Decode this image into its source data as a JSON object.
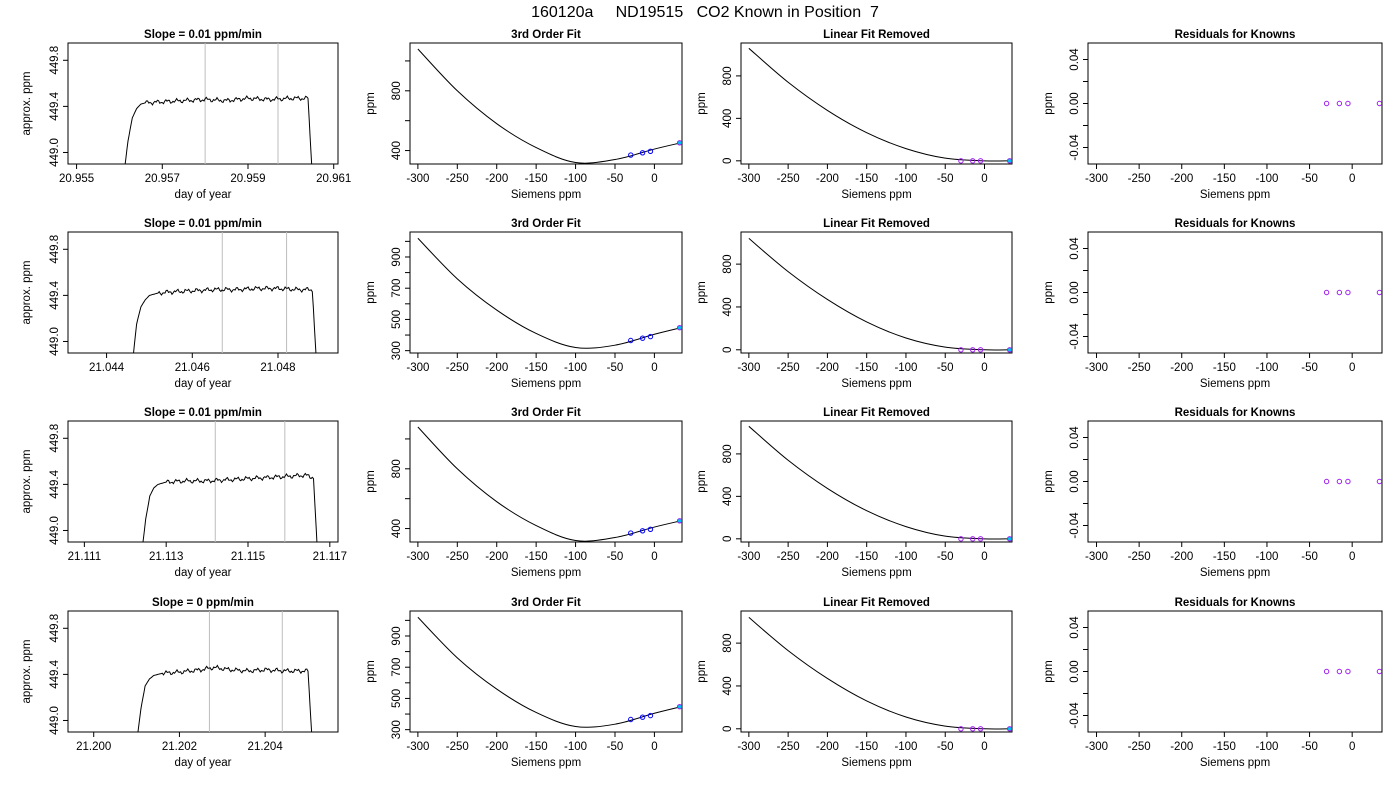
{
  "figure_title": "160120a     ND19515   CO2 Known in Position  7",
  "colors": {
    "line": "#000000",
    "vline": "#bebebe",
    "known_edge": "#a020f0",
    "calib_dot": "#00bfff",
    "trace_highlight": "#ff69b4"
  },
  "chart_data": [
    {
      "type": "line",
      "row": 0,
      "col": 0,
      "title": "Slope =  0.01  ppm/min",
      "xlabel": "day of year",
      "ylabel": "approx. ppm",
      "xlim": [
        20.9548,
        20.9611
      ],
      "ylim": [
        448.9,
        449.95
      ],
      "xticks": [
        20.955,
        20.957,
        20.959,
        20.961
      ],
      "xtick_labels": [
        "20.955",
        "20.957",
        "20.959",
        "20.961"
      ],
      "yticks": [
        449.0,
        449.4,
        449.8
      ],
      "ytick_labels": [
        "449.0",
        "449.4",
        "449.8"
      ],
      "vlines": [
        20.958,
        20.9597
      ],
      "trace": {
        "start": 20.9561,
        "rise_end": 20.9566,
        "end": 20.9605,
        "plateau": 449.46,
        "floor": 448.8
      },
      "series": [
        {
          "x": [
            20.9561,
            20.9562,
            20.9563,
            20.9564,
            20.9565,
            20.9566,
            20.957,
            20.9575,
            20.958,
            20.9585,
            20.959,
            20.9595,
            20.96,
            20.9604,
            20.9605
          ],
          "y": [
            448.8,
            449.1,
            449.3,
            449.38,
            449.42,
            449.43,
            449.44,
            449.45,
            449.46,
            449.45,
            449.47,
            449.46,
            449.47,
            449.47,
            448.8
          ]
        }
      ]
    },
    {
      "type": "line",
      "row": 0,
      "col": 1,
      "title": "3rd Order Fit",
      "xlabel": "Siemens ppm",
      "ylabel": "ppm",
      "xlim": [
        -310,
        35
      ],
      "ylim": [
        310,
        1120
      ],
      "xticks": [
        -300,
        -250,
        -200,
        -150,
        -100,
        -50,
        0
      ],
      "xtick_labels": [
        "-300",
        "-250",
        "-200",
        "-150",
        "-100",
        "-50",
        "0"
      ],
      "yticks": [
        400,
        800
      ],
      "ytick_labels": [
        "400",
        "800"
      ],
      "minor_yticks": [
        600,
        1000
      ],
      "curve": {
        "x": [
          -300,
          -250,
          -200,
          -150,
          -100,
          -50,
          0,
          32
        ],
        "y": [
          1080,
          800,
          580,
          420,
          320,
          340,
          410,
          450
        ]
      },
      "knowns": {
        "x": [
          -30,
          -15,
          -5,
          32
        ],
        "y": [
          370,
          385,
          395,
          452
        ]
      }
    },
    {
      "type": "line",
      "row": 0,
      "col": 2,
      "title": "Linear Fit Removed",
      "xlabel": "Siemens ppm",
      "ylabel": "ppm",
      "xlim": [
        -310,
        35
      ],
      "ylim": [
        -30,
        1110
      ],
      "xticks": [
        -300,
        -250,
        -200,
        -150,
        -100,
        -50,
        0
      ],
      "xtick_labels": [
        "-300",
        "-250",
        "-200",
        "-150",
        "-100",
        "-50",
        "0"
      ],
      "yticks": [
        0,
        400,
        800
      ],
      "ytick_labels": [
        "0",
        "400",
        "800"
      ],
      "curve": {
        "x": [
          -300,
          -250,
          -200,
          -150,
          -100,
          -50,
          0,
          32
        ],
        "y": [
          1060,
          740,
          475,
          265,
          115,
          25,
          0,
          0
        ]
      },
      "knowns": {
        "x": [
          -30,
          -15,
          -5,
          32
        ],
        "y": [
          0,
          0,
          0,
          0
        ]
      }
    },
    {
      "type": "scatter",
      "row": 0,
      "col": 3,
      "title": "Residuals for Knowns",
      "xlabel": "Siemens ppm",
      "ylabel": "ppm",
      "xlim": [
        -310,
        35
      ],
      "ylim": [
        -0.055,
        0.055
      ],
      "xticks": [
        -300,
        -250,
        -200,
        -150,
        -100,
        -50,
        0
      ],
      "xtick_labels": [
        "-300",
        "-250",
        "-200",
        "-150",
        "-100",
        "-50",
        "0"
      ],
      "yticks": [
        -0.04,
        0.0,
        0.04
      ],
      "ytick_labels": [
        "-0.04",
        "0.00",
        "0.04"
      ],
      "minor_yticks": [
        -0.02,
        0.02
      ],
      "knowns": {
        "x": [
          -30,
          -15,
          -5,
          32
        ],
        "y": [
          0,
          0,
          0,
          0
        ]
      }
    },
    {
      "type": "line",
      "row": 1,
      "col": 0,
      "title": "Slope =  0.01  ppm/min",
      "xlabel": "day of year",
      "ylabel": "approx. ppm",
      "xlim": [
        21.0431,
        21.0494
      ],
      "ylim": [
        448.9,
        449.95
      ],
      "xticks": [
        21.044,
        21.046,
        21.048
      ],
      "xtick_labels": [
        "21.044",
        "21.046",
        "21.048"
      ],
      "yticks": [
        449.0,
        449.4,
        449.8
      ],
      "ytick_labels": [
        "449.0",
        "449.4",
        "449.8"
      ],
      "vlines": [
        21.0467,
        21.0482
      ],
      "series": [
        {
          "x": [
            21.0446,
            21.0447,
            21.0448,
            21.0449,
            21.045,
            21.0452,
            21.0455,
            21.046,
            21.0465,
            21.047,
            21.0475,
            21.048,
            21.0485,
            21.0488,
            21.0489
          ],
          "y": [
            448.8,
            449.15,
            449.3,
            449.36,
            449.4,
            449.42,
            449.43,
            449.44,
            449.45,
            449.45,
            449.46,
            449.46,
            449.45,
            449.45,
            448.8
          ]
        }
      ]
    },
    {
      "type": "line",
      "row": 1,
      "col": 1,
      "title": "3rd Order Fit",
      "xlabel": "Siemens ppm",
      "ylabel": "ppm",
      "xlim": [
        -310,
        35
      ],
      "ylim": [
        285,
        1060
      ],
      "xticks": [
        -300,
        -250,
        -200,
        -150,
        -100,
        -50,
        0
      ],
      "xtick_labels": [
        "-300",
        "-250",
        "-200",
        "-150",
        "-100",
        "-50",
        "0"
      ],
      "yticks": [
        300,
        500,
        700,
        900
      ],
      "ytick_labels": [
        "300",
        "500",
        "700",
        "900"
      ],
      "minor_yticks": [
        400,
        600,
        800,
        1000
      ],
      "curve": {
        "x": [
          -300,
          -250,
          -200,
          -150,
          -100,
          -50,
          0,
          32
        ],
        "y": [
          1020,
          760,
          560,
          410,
          320,
          335,
          405,
          445
        ]
      },
      "knowns": {
        "x": [
          -30,
          -15,
          -5,
          32
        ],
        "y": [
          365,
          380,
          390,
          447
        ]
      }
    },
    {
      "type": "line",
      "row": 1,
      "col": 2,
      "title": "Linear Fit Removed",
      "xlabel": "Siemens ppm",
      "ylabel": "ppm",
      "xlim": [
        -310,
        35
      ],
      "ylim": [
        -30,
        1100
      ],
      "xticks": [
        -300,
        -250,
        -200,
        -150,
        -100,
        -50,
        0
      ],
      "xtick_labels": [
        "-300",
        "-250",
        "-200",
        "-150",
        "-100",
        "-50",
        "0"
      ],
      "yticks": [
        0,
        400,
        800
      ],
      "ytick_labels": [
        "0",
        "400",
        "800"
      ],
      "curve": {
        "x": [
          -300,
          -250,
          -200,
          -150,
          -100,
          -50,
          0,
          32
        ],
        "y": [
          1040,
          730,
          470,
          260,
          110,
          25,
          0,
          0
        ]
      },
      "knowns": {
        "x": [
          -30,
          -15,
          -5,
          32
        ],
        "y": [
          0,
          0,
          0,
          0
        ]
      }
    },
    {
      "type": "scatter",
      "row": 1,
      "col": 3,
      "title": "Residuals for Knowns",
      "xlabel": "Siemens ppm",
      "ylabel": "ppm",
      "xlim": [
        -310,
        35
      ],
      "ylim": [
        -0.055,
        0.055
      ],
      "xticks": [
        -300,
        -250,
        -200,
        -150,
        -100,
        -50,
        0
      ],
      "xtick_labels": [
        "-300",
        "-250",
        "-200",
        "-150",
        "-100",
        "-50",
        "0"
      ],
      "yticks": [
        -0.04,
        0.0,
        0.04
      ],
      "ytick_labels": [
        "-0.04",
        "0.00",
        "0.04"
      ],
      "minor_yticks": [
        -0.02,
        0.02
      ],
      "knowns": {
        "x": [
          -30,
          -15,
          -5,
          32
        ],
        "y": [
          0,
          0,
          0,
          0
        ]
      }
    },
    {
      "type": "line",
      "row": 2,
      "col": 0,
      "title": "Slope =  0.01  ppm/min",
      "xlabel": "day of year",
      "ylabel": "approx. ppm",
      "xlim": [
        21.1106,
        21.1172
      ],
      "ylim": [
        448.9,
        449.95
      ],
      "xticks": [
        21.111,
        21.113,
        21.115,
        21.117
      ],
      "xtick_labels": [
        "21.111",
        "21.113",
        "21.115",
        "21.117"
      ],
      "yticks": [
        449.0,
        449.4,
        449.8
      ],
      "ytick_labels": [
        "449.0",
        "449.4",
        "449.8"
      ],
      "vlines": [
        21.1142,
        21.1159
      ],
      "series": [
        {
          "x": [
            21.1124,
            21.1125,
            21.1126,
            21.1127,
            21.1128,
            21.113,
            21.1135,
            21.114,
            21.1145,
            21.115,
            21.1155,
            21.116,
            21.1164,
            21.1166,
            21.1167
          ],
          "y": [
            448.8,
            449.1,
            449.3,
            449.37,
            449.4,
            449.42,
            449.43,
            449.43,
            449.44,
            449.45,
            449.46,
            449.47,
            449.48,
            449.46,
            448.8
          ]
        }
      ]
    },
    {
      "type": "line",
      "row": 2,
      "col": 1,
      "title": "3rd Order Fit",
      "xlabel": "Siemens ppm",
      "ylabel": "ppm",
      "xlim": [
        -310,
        35
      ],
      "ylim": [
        310,
        1120
      ],
      "xticks": [
        -300,
        -250,
        -200,
        -150,
        -100,
        -50,
        0
      ],
      "xtick_labels": [
        "-300",
        "-250",
        "-200",
        "-150",
        "-100",
        "-50",
        "0"
      ],
      "yticks": [
        400,
        800
      ],
      "ytick_labels": [
        "400",
        "800"
      ],
      "minor_yticks": [
        600,
        1000
      ],
      "curve": {
        "x": [
          -300,
          -250,
          -200,
          -150,
          -100,
          -50,
          0,
          32
        ],
        "y": [
          1080,
          800,
          580,
          420,
          320,
          340,
          410,
          450
        ]
      },
      "knowns": {
        "x": [
          -30,
          -15,
          -5,
          32
        ],
        "y": [
          370,
          385,
          395,
          452
        ]
      }
    },
    {
      "type": "line",
      "row": 2,
      "col": 2,
      "title": "Linear Fit Removed",
      "xlabel": "Siemens ppm",
      "ylabel": "ppm",
      "xlim": [
        -310,
        35
      ],
      "ylim": [
        -30,
        1110
      ],
      "xticks": [
        -300,
        -250,
        -200,
        -150,
        -100,
        -50,
        0
      ],
      "xtick_labels": [
        "-300",
        "-250",
        "-200",
        "-150",
        "-100",
        "-50",
        "0"
      ],
      "yticks": [
        0,
        400,
        800
      ],
      "ytick_labels": [
        "0",
        "400",
        "800"
      ],
      "curve": {
        "x": [
          -300,
          -250,
          -200,
          -150,
          -100,
          -50,
          0,
          32
        ],
        "y": [
          1060,
          740,
          475,
          265,
          115,
          25,
          0,
          0
        ]
      },
      "knowns": {
        "x": [
          -30,
          -15,
          -5,
          32
        ],
        "y": [
          0,
          0,
          0,
          0
        ]
      }
    },
    {
      "type": "scatter",
      "row": 2,
      "col": 3,
      "title": "Residuals for Knowns",
      "xlabel": "Siemens ppm",
      "ylabel": "ppm",
      "xlim": [
        -310,
        35
      ],
      "ylim": [
        -0.055,
        0.055
      ],
      "xticks": [
        -300,
        -250,
        -200,
        -150,
        -100,
        -50,
        0
      ],
      "xtick_labels": [
        "-300",
        "-250",
        "-200",
        "-150",
        "-100",
        "-50",
        "0"
      ],
      "yticks": [
        -0.04,
        0.0,
        0.04
      ],
      "ytick_labels": [
        "-0.04",
        "0.00",
        "0.04"
      ],
      "minor_yticks": [
        -0.02,
        0.02
      ],
      "knowns": {
        "x": [
          -30,
          -15,
          -5,
          32
        ],
        "y": [
          0,
          0,
          0,
          0
        ]
      }
    },
    {
      "type": "line",
      "row": 3,
      "col": 0,
      "title": "Slope =  0  ppm/min",
      "xlabel": "day of year",
      "ylabel": "approx. ppm",
      "xlim": [
        21.1994,
        21.2057
      ],
      "ylim": [
        448.9,
        449.95
      ],
      "xticks": [
        21.2,
        21.202,
        21.204
      ],
      "xtick_labels": [
        "21.200",
        "21.202",
        "21.204"
      ],
      "yticks": [
        449.0,
        449.4,
        449.8
      ],
      "ytick_labels": [
        "449.0",
        "449.4",
        "449.8"
      ],
      "vlines": [
        21.2027,
        21.2044
      ],
      "series": [
        {
          "x": [
            21.201,
            21.2011,
            21.2012,
            21.2013,
            21.2014,
            21.2016,
            21.202,
            21.2025,
            21.2028,
            21.2032,
            21.2036,
            21.204,
            21.2045,
            21.205,
            21.2051
          ],
          "y": [
            448.8,
            449.1,
            449.3,
            449.36,
            449.39,
            449.41,
            449.42,
            449.44,
            449.46,
            449.44,
            449.43,
            449.44,
            449.43,
            449.43,
            448.8
          ]
        }
      ]
    },
    {
      "type": "line",
      "row": 3,
      "col": 1,
      "title": "3rd Order Fit",
      "xlabel": "Siemens ppm",
      "ylabel": "ppm",
      "xlim": [
        -310,
        35
      ],
      "ylim": [
        285,
        1060
      ],
      "xticks": [
        -300,
        -250,
        -200,
        -150,
        -100,
        -50,
        0
      ],
      "xtick_labels": [
        "-300",
        "-250",
        "-200",
        "-150",
        "-100",
        "-50",
        "0"
      ],
      "yticks": [
        300,
        500,
        700,
        900
      ],
      "ytick_labels": [
        "300",
        "500",
        "700",
        "900"
      ],
      "minor_yticks": [
        400,
        600,
        800,
        1000
      ],
      "curve": {
        "x": [
          -300,
          -250,
          -200,
          -150,
          -100,
          -50,
          0,
          32
        ],
        "y": [
          1020,
          760,
          560,
          410,
          320,
          335,
          405,
          445
        ]
      },
      "knowns": {
        "x": [
          -30,
          -15,
          -5,
          32
        ],
        "y": [
          365,
          380,
          390,
          447
        ]
      }
    },
    {
      "type": "line",
      "row": 3,
      "col": 2,
      "title": "Linear Fit Removed",
      "xlabel": "Siemens ppm",
      "ylabel": "ppm",
      "xlim": [
        -310,
        35
      ],
      "ylim": [
        -30,
        1100
      ],
      "xticks": [
        -300,
        -250,
        -200,
        -150,
        -100,
        -50,
        0
      ],
      "xtick_labels": [
        "-300",
        "-250",
        "-200",
        "-150",
        "-100",
        "-50",
        "0"
      ],
      "yticks": [
        0,
        400,
        800
      ],
      "ytick_labels": [
        "0",
        "400",
        "800"
      ],
      "curve": {
        "x": [
          -300,
          -250,
          -200,
          -150,
          -100,
          -50,
          0,
          32
        ],
        "y": [
          1040,
          730,
          470,
          260,
          110,
          25,
          0,
          0
        ]
      },
      "knowns": {
        "x": [
          -30,
          -15,
          -5,
          32
        ],
        "y": [
          0,
          0,
          0,
          0
        ]
      }
    },
    {
      "type": "scatter",
      "row": 3,
      "col": 3,
      "title": "Residuals for Knowns",
      "xlabel": "Siemens ppm",
      "ylabel": "ppm",
      "xlim": [
        -310,
        35
      ],
      "ylim": [
        -0.055,
        0.055
      ],
      "xticks": [
        -300,
        -250,
        -200,
        -150,
        -100,
        -50,
        0
      ],
      "xtick_labels": [
        "-300",
        "-250",
        "-200",
        "-150",
        "-100",
        "-50",
        "0"
      ],
      "yticks": [
        -0.04,
        0.0,
        0.04
      ],
      "ytick_labels": [
        "-0.04",
        "0.00",
        "0.04"
      ],
      "minor_yticks": [
        -0.02,
        0.02
      ],
      "knowns": {
        "x": [
          -30,
          -15,
          -5,
          32
        ],
        "y": [
          0,
          0,
          0,
          0
        ]
      }
    }
  ]
}
